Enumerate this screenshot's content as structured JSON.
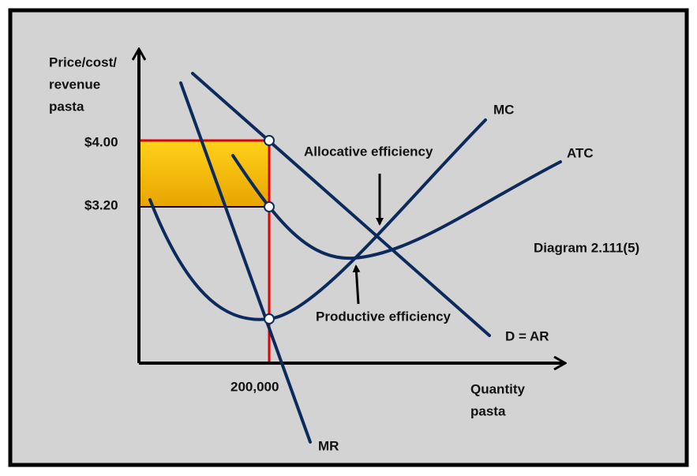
{
  "y_axis_label": [
    "Price/cost/",
    "revenue",
    "pasta"
  ],
  "x_axis_label": [
    "Quantity",
    "pasta"
  ],
  "price_labels": [
    "$4.00",
    "$3.20"
  ],
  "quantity_label": "200,000",
  "curves": {
    "mc": "MC",
    "atc": "ATC",
    "demand": "D = AR",
    "mr": "MR"
  },
  "annotations": {
    "allocative": "Allocative efficiency",
    "productive": "Productive efficiency"
  },
  "diagram_id": "Diagram 2.111(5)"
}
